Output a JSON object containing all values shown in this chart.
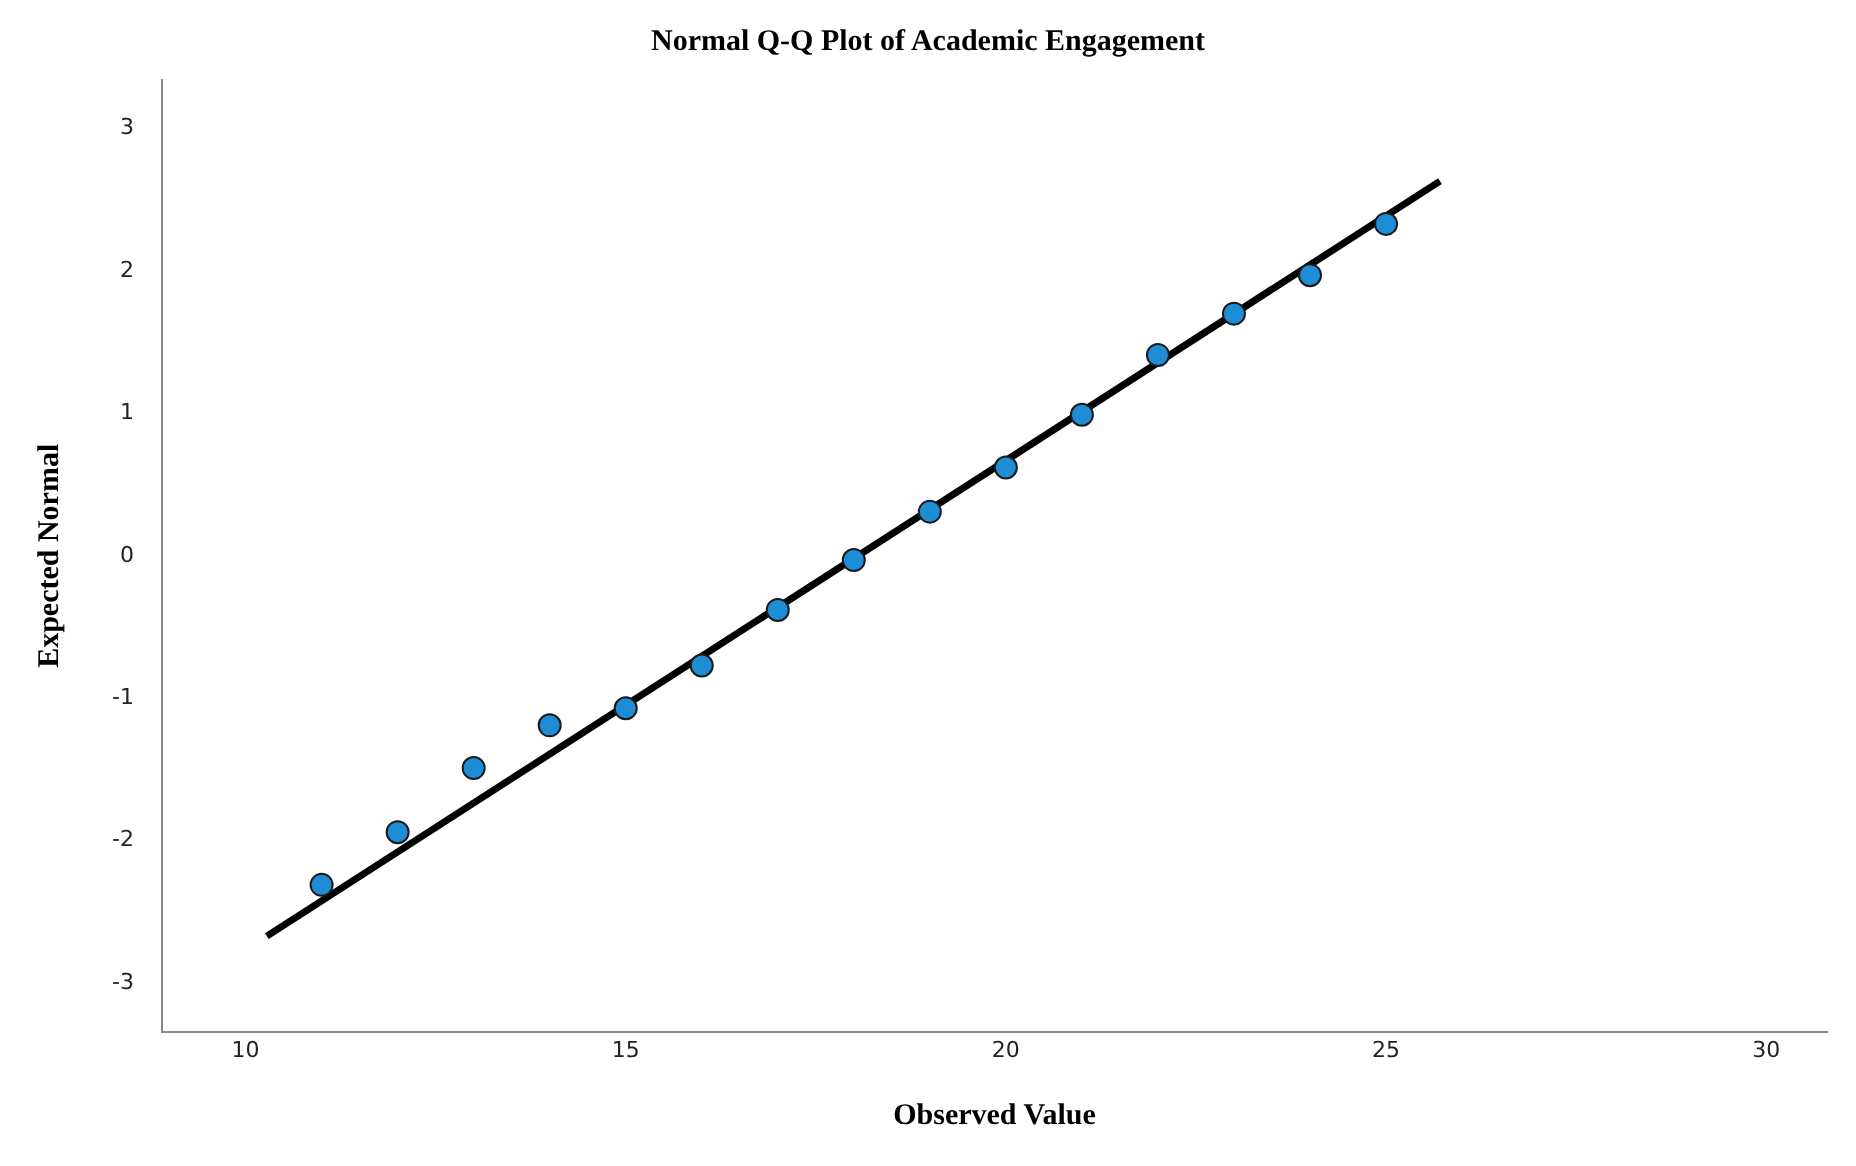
{
  "chart_data": {
    "type": "scatter",
    "title": "Normal Q-Q Plot of Academic Engagement",
    "xlabel": "Observed Value",
    "ylabel": "Expected Normal",
    "xlim": [
      8.9,
      30.8
    ],
    "ylim": [
      -3.34,
      3.34
    ],
    "xticks": [
      10,
      15,
      20,
      25,
      30
    ],
    "yticks": [
      -3,
      -2,
      -1,
      0,
      1,
      2,
      3
    ],
    "grid": false,
    "series": [
      {
        "type": "scatter",
        "marker": "circle",
        "color": "#1f8dd6",
        "x": [
          11,
          12,
          13,
          14,
          15,
          16,
          17,
          18,
          19,
          20,
          21,
          22,
          23,
          24,
          25
        ],
        "values": [
          -2.31,
          -1.94,
          -1.49,
          -1.19,
          -1.07,
          -0.77,
          -0.38,
          -0.03,
          0.31,
          0.62,
          0.99,
          1.41,
          1.7,
          1.97,
          2.33
        ]
      },
      {
        "type": "line",
        "marker": "none",
        "line_style": "solid",
        "color": "#000000",
        "x": [
          10.28,
          25.71
        ],
        "values": [
          -2.67,
          2.63
        ]
      }
    ]
  }
}
